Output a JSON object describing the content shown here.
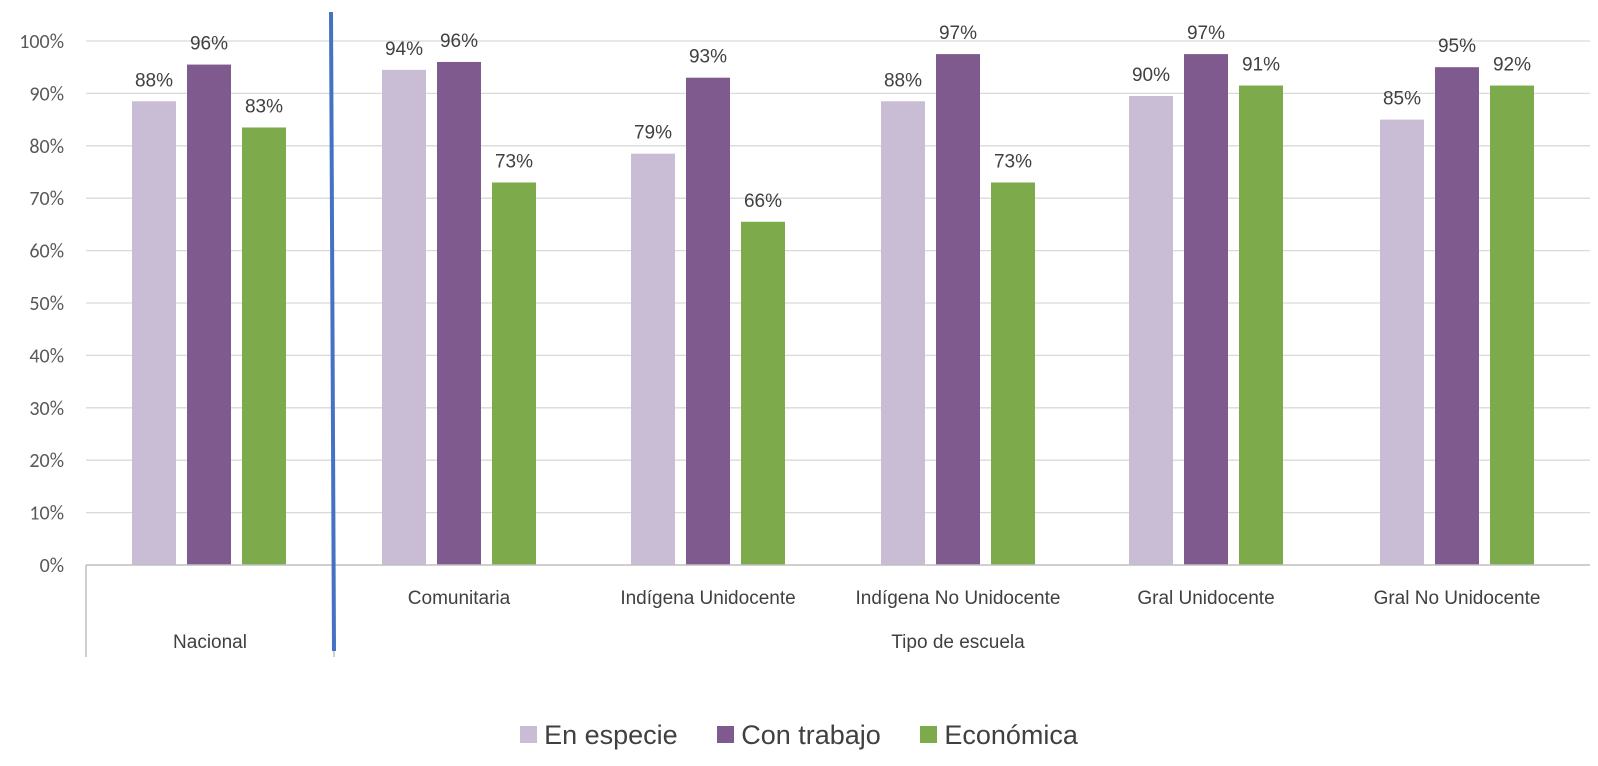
{
  "chart_data": {
    "type": "bar",
    "ylim": [
      0,
      1
    ],
    "y_ticks": [
      "0%",
      "10%",
      "20%",
      "30%",
      "40%",
      "50%",
      "60%",
      "70%",
      "80%",
      "90%",
      "100%"
    ],
    "grid": true,
    "legend_position": "bottom",
    "groups": [
      {
        "label": "Nacional",
        "categories": [
          "Nacional"
        ]
      },
      {
        "label": "Tipo de escuela",
        "categories": [
          "Comunitaria",
          "Indígena Unidocente",
          "Indígena No Unidocente",
          "Gral Unidocente",
          "Gral No Unidocente"
        ]
      }
    ],
    "categories": [
      "Nacional",
      "Comunitaria",
      "Indígena Unidocente",
      "Indígena No Unidocente",
      "Gral Unidocente",
      "Gral No Unidocente"
    ],
    "category_labels": [
      "",
      "Comunitaria",
      "Indígena Unidocente",
      "Indígena No Unidocente",
      "Gral Unidocente",
      "Gral No Unidocente"
    ],
    "series": [
      {
        "name": "En especie",
        "color": "#c9bdd5",
        "values": [
          0.885,
          0.945,
          0.785,
          0.885,
          0.895,
          0.85
        ],
        "labels": [
          "88%",
          "94%",
          "79%",
          "88%",
          "90%",
          "85%"
        ]
      },
      {
        "name": "Con trabajo",
        "color": "#7f5a8e",
        "values": [
          0.955,
          0.96,
          0.93,
          0.975,
          0.975,
          0.95
        ],
        "labels": [
          "96%",
          "96%",
          "93%",
          "97%",
          "97%",
          "95%"
        ]
      },
      {
        "name": "Económica",
        "color": "#7dab4c",
        "values": [
          0.835,
          0.73,
          0.655,
          0.73,
          0.915,
          0.915
        ],
        "labels": [
          "83%",
          "73%",
          "66%",
          "73%",
          "91%",
          "92%"
        ]
      }
    ],
    "divider_color": "#4472c4"
  }
}
